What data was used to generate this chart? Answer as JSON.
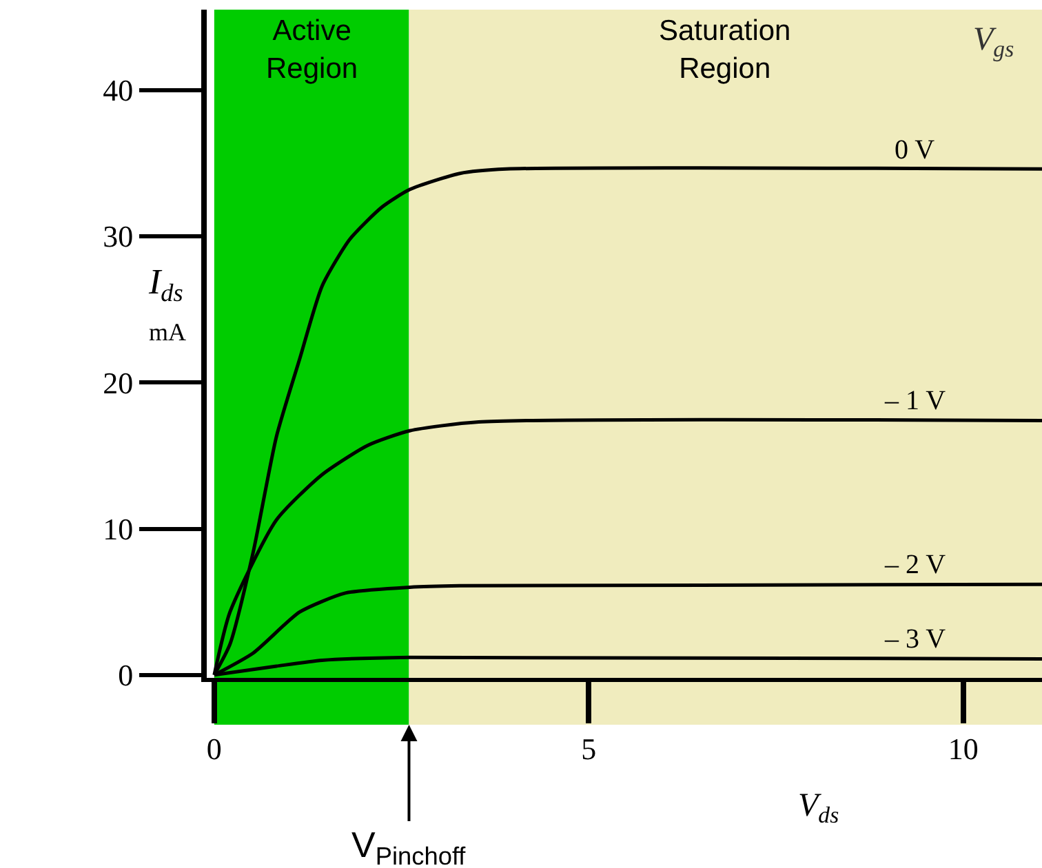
{
  "chart_data": {
    "type": "line",
    "xlabel": "V$_{ds}$",
    "ylabel": "I$_{ds}$\nmA",
    "series": [
      {
        "name": "0 V",
        "color": "#000000",
        "x": [
          0,
          0.21,
          0.52,
          0.83,
          1.14,
          1.44,
          1.81,
          2.24,
          2.61,
          3.28,
          3.9,
          11.05
        ],
        "values": [
          0,
          2.1,
          8.4,
          16.3,
          21.6,
          26.6,
          29.8,
          32,
          33.2,
          34.3,
          34.6,
          34.6
        ]
      },
      {
        "name": "– 1 V",
        "color": "#000000",
        "x": [
          0,
          0.21,
          0.83,
          1.44,
          2.05,
          2.61,
          3.53,
          11.05
        ],
        "values": [
          0,
          4.3,
          10.6,
          13.7,
          15.7,
          16.7,
          17.3,
          17.4
        ]
      },
      {
        "name": "– 2 V",
        "color": "#000000",
        "x": [
          0,
          0.52,
          1.14,
          1.75,
          2.61,
          3.28,
          11.05
        ],
        "values": [
          0,
          1.5,
          4.3,
          5.6,
          6.0,
          6.1,
          6.2
        ]
      },
      {
        "name": "– 3 V",
        "color": "#000000",
        "x": [
          0,
          0.83,
          1.44,
          2.61,
          11.05
        ],
        "values": [
          0,
          0.6,
          1.0,
          1.2,
          1.1
        ]
      }
    ],
    "xlim": [
      -0.1,
      11.05
    ],
    "ylim": [
      -0.2,
      45.5
    ],
    "xticks": [
      0,
      5,
      10
    ],
    "yticks": [
      0,
      10,
      20,
      30,
      40
    ],
    "bands": [
      {
        "axis": "x",
        "from": 0,
        "to": 2.6,
        "label": "Active\nRegion",
        "color": "#00cc00"
      },
      {
        "axis": "x",
        "from": 2.6,
        "to": 11.05,
        "label": "Saturation\nRegion",
        "color": "#f0ecbe"
      }
    ],
    "annotations": [
      "V$_{gs}$",
      {
        "text": "V$_{Pinchoff}$",
        "x": 2.6
      }
    ],
    "grid": false,
    "legend": false,
    "marker": "none",
    "line_style": "solid"
  }
}
